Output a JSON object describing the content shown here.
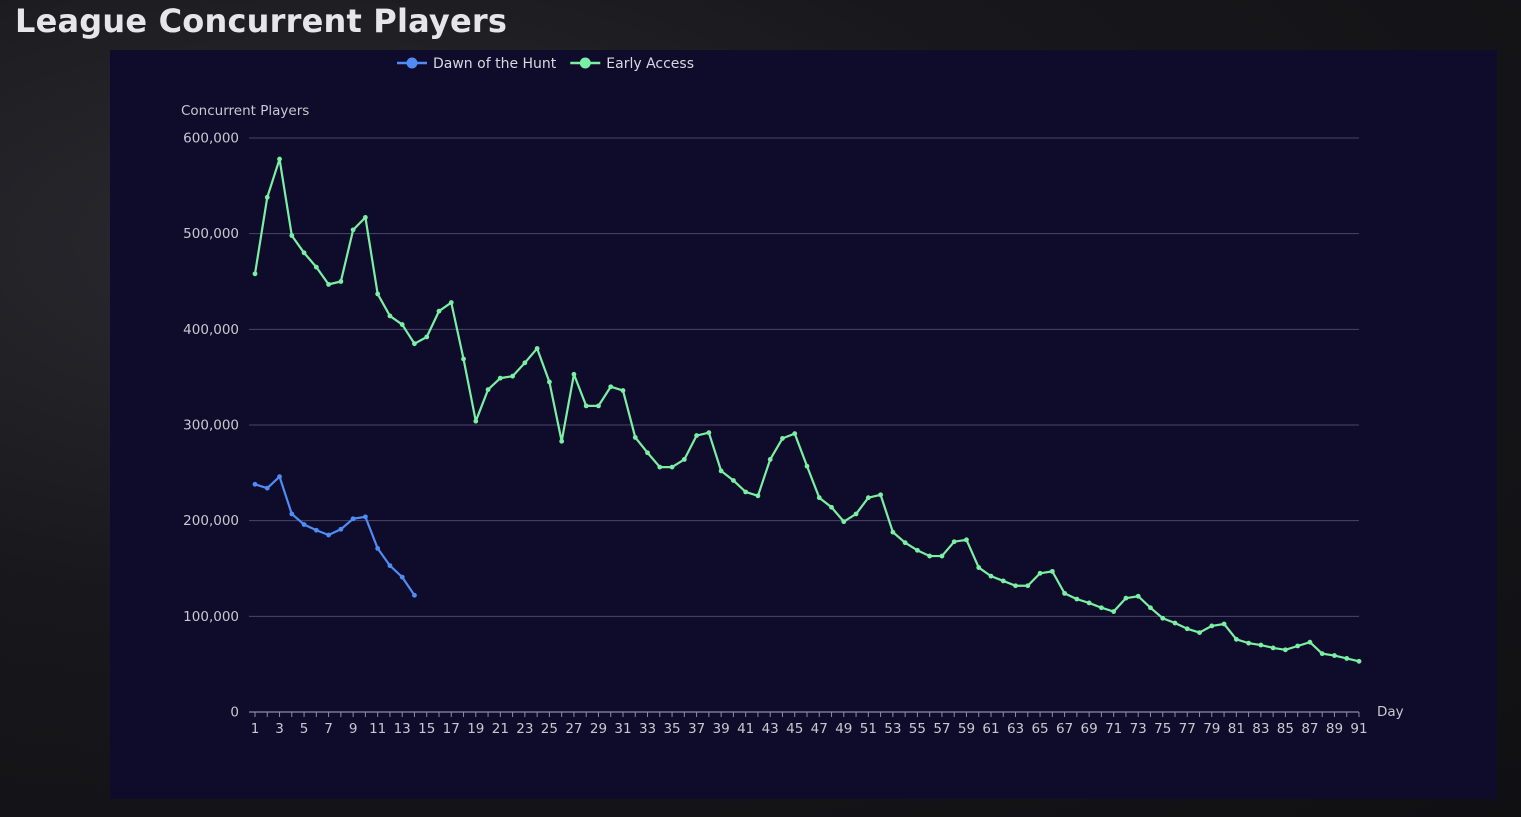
{
  "page": {
    "title": "League Concurrent Players"
  },
  "colors": {
    "series_dawn": "#4f8cf5",
    "series_early": "#7af0a4",
    "grid": "#4a4668",
    "axis": "#8e8aa8",
    "panel_bg": "#0f0b2a"
  },
  "chart_data": {
    "type": "line",
    "title": "League Concurrent Players",
    "xlabel": "Day",
    "ylabel": "Concurrent Players",
    "ylim": [
      0,
      600000
    ],
    "yticks": [
      0,
      100000,
      200000,
      300000,
      400000,
      500000,
      600000
    ],
    "ytick_labels": [
      "0",
      "100,000",
      "200,000",
      "300,000",
      "400,000",
      "500,000",
      "600,000"
    ],
    "xlim": [
      1,
      91
    ],
    "xtick_labels": [
      "1",
      "3",
      "5",
      "7",
      "9",
      "11",
      "13",
      "15",
      "17",
      "19",
      "21",
      "23",
      "25",
      "27",
      "29",
      "31",
      "33",
      "35",
      "37",
      "39",
      "41",
      "43",
      "45",
      "47",
      "49",
      "51",
      "53",
      "55",
      "57",
      "59",
      "61",
      "63",
      "65",
      "67",
      "69",
      "71",
      "73",
      "75",
      "77",
      "79",
      "81",
      "83",
      "85",
      "87",
      "89",
      "91"
    ],
    "grid": true,
    "legend_position": "top",
    "series": [
      {
        "name": "Dawn of the Hunt",
        "color": "#4f8cf5",
        "start_day": 1,
        "values": [
          238000,
          234000,
          246000,
          207000,
          196000,
          190000,
          185000,
          191000,
          202000,
          204000,
          171000,
          153000,
          141000,
          122000
        ]
      },
      {
        "name": "Early Access",
        "color": "#7af0a4",
        "start_day": 1,
        "values": [
          458000,
          538000,
          578000,
          498000,
          480000,
          465000,
          447000,
          450000,
          504000,
          517000,
          437000,
          414000,
          405000,
          385000,
          392000,
          419000,
          428000,
          369000,
          304000,
          337000,
          349000,
          351000,
          365000,
          380000,
          345000,
          283000,
          353000,
          320000,
          320000,
          340000,
          336000,
          287000,
          271000,
          256000,
          256000,
          264000,
          289000,
          292000,
          252000,
          242000,
          230000,
          226000,
          264000,
          286000,
          291000,
          257000,
          224000,
          214000,
          199000,
          207000,
          224000,
          227000,
          188000,
          177000,
          169000,
          163000,
          163000,
          178000,
          180000,
          151000,
          142000,
          137000,
          132000,
          132000,
          145000,
          147000,
          124000,
          118000,
          114000,
          109000,
          105000,
          119000,
          121000,
          109000,
          98000,
          93000,
          87000,
          83000,
          90000,
          92000,
          76000,
          72000,
          70000,
          67000,
          65000,
          69000,
          73000,
          61000,
          59000,
          56000,
          53000
        ]
      }
    ]
  }
}
